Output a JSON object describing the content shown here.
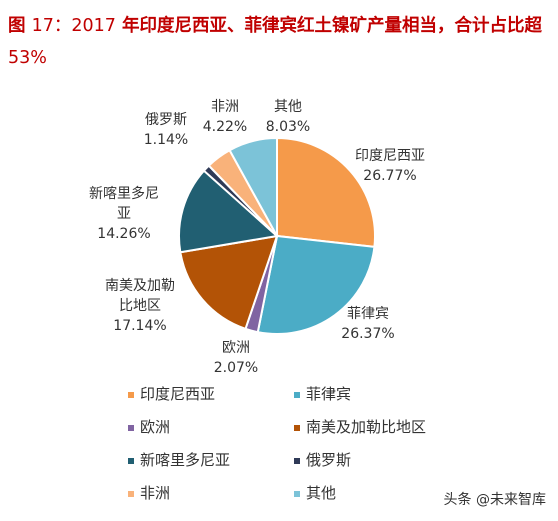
{
  "chart_data": {
    "type": "pie",
    "title": "图 17：2017 年印度尼西亚、菲律宾红土镍矿产量相当，合计占比超 53%",
    "categories": [
      "印度尼西亚",
      "菲律宾",
      "欧洲",
      "南美及加勒比地区",
      "新喀里多尼亚",
      "俄罗斯",
      "非洲",
      "其他"
    ],
    "values": [
      26.77,
      26.37,
      2.07,
      17.14,
      14.26,
      1.14,
      4.22,
      8.03
    ],
    "value_labels": [
      "26.77%",
      "26.37%",
      "2.07%",
      "17.14%",
      "14.26%",
      "1.14%",
      "4.22%",
      "8.03%"
    ],
    "colors": [
      "#f59a4a",
      "#4bacc6",
      "#8064a2",
      "#b35306",
      "#215f72",
      "#2f3a57",
      "#f9b27a",
      "#7cc3d8"
    ],
    "slice_label_lines": [
      [
        "印度尼西亚",
        "26.77%"
      ],
      [
        "菲律宾",
        "26.37%"
      ],
      [
        "欧洲",
        "2.07%"
      ],
      [
        "南美及加勒",
        "比地区",
        "17.14%"
      ],
      [
        "新喀里多尼",
        "亚",
        "14.26%"
      ],
      [
        "俄罗斯",
        "1.14%"
      ],
      [
        "非洲",
        "4.22%"
      ],
      [
        "其他",
        "8.03%"
      ]
    ],
    "legend": [
      "印度尼西亚",
      "菲律宾",
      "欧洲",
      "南美及加勒比地区",
      "新喀里多尼亚",
      "俄罗斯",
      "非洲",
      "其他"
    ],
    "legend_position": "bottom"
  },
  "title": {
    "part1": "图 ",
    "part2": "17：",
    "part3": "2017",
    "part4": " 年印度尼西亚、菲律宾红土镍矿产量相当，合计占比超 ",
    "part5": "53%"
  },
  "watermark": "头条 @未来智库"
}
